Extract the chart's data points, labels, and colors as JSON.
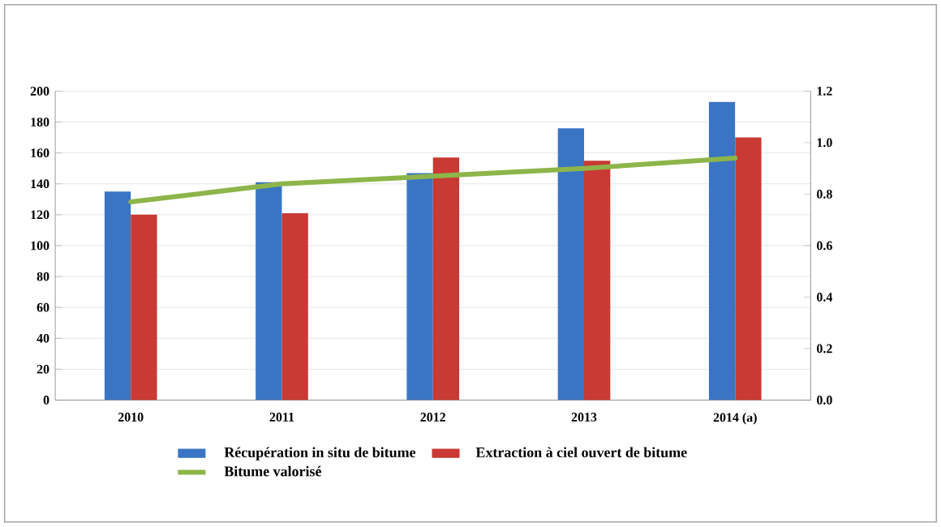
{
  "chart_data": {
    "type": "bar",
    "categories": [
      "2010",
      "2011",
      "2012",
      "2013",
      "2014 (a)"
    ],
    "series": [
      {
        "name": "Récupération in situ de bitume",
        "color": "#3a75c4",
        "values": [
          135,
          141,
          147,
          176,
          193
        ]
      },
      {
        "name": "Extraction à ciel ouvert de bitume",
        "color": "#c83a33",
        "values": [
          120,
          121,
          157,
          155,
          170
        ]
      },
      {
        "name": "Bitume valorisé",
        "type": "line",
        "axis": "y2",
        "color": "#8db54a",
        "values": [
          0.77,
          0.84,
          0.87,
          0.9,
          0.94
        ]
      }
    ],
    "ylim": [
      0,
      200
    ],
    "yticks": [
      0,
      20,
      40,
      60,
      80,
      100,
      120,
      140,
      160,
      180,
      200
    ],
    "y2lim": [
      0,
      1.2
    ],
    "y2ticks": [
      {
        "value": 0,
        "label": "0.0"
      },
      {
        "value": 0.2,
        "label": "0.2"
      },
      {
        "value": 0.4,
        "label": "0.4"
      },
      {
        "value": 0.6,
        "label": "0.6"
      },
      {
        "value": 0.8,
        "label": "0.8"
      },
      {
        "value": 1.0,
        "label": "1.0"
      },
      {
        "value": 1.2,
        "label": "1.2"
      }
    ],
    "grid": "y",
    "legend": "bottom",
    "marker": "none",
    "line_style": "solid"
  }
}
